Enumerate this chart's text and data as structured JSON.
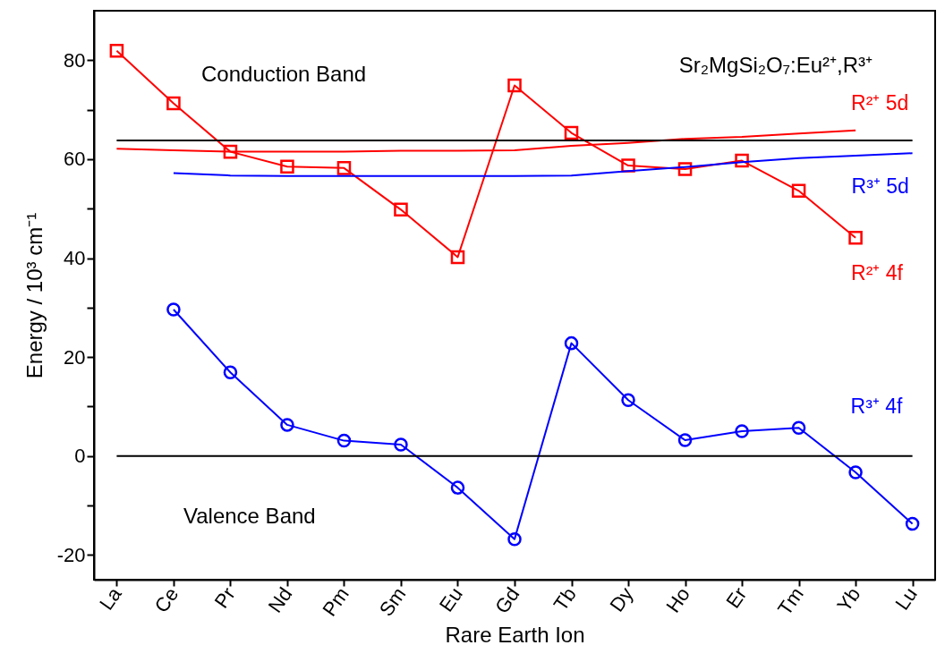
{
  "chart_data": {
    "type": "line",
    "xlabel": "Rare Earth Ion",
    "ylabel": "Energy / 10³ cm⁻¹",
    "categories": [
      "La",
      "Ce",
      "Pr",
      "Nd",
      "Pm",
      "Sm",
      "Eu",
      "Gd",
      "Tb",
      "Dy",
      "Ho",
      "Er",
      "Tm",
      "Yb",
      "Lu"
    ],
    "series": [
      {
        "name": "R²⁺ 4f",
        "color": "#ff0000",
        "marker": "square",
        "values": [
          81.9,
          71.3,
          61.5,
          58.5,
          58.2,
          49.8,
          40.2,
          74.9,
          65.3,
          58.7,
          58.0,
          59.7,
          53.6,
          44.1,
          null
        ]
      },
      {
        "name": "R²⁺ 5d",
        "color": "#ff0000",
        "marker": "none",
        "values": [
          62.1,
          61.8,
          61.5,
          61.5,
          61.5,
          61.7,
          61.7,
          61.8,
          62.7,
          63.3,
          64.1,
          64.5,
          65.2,
          65.8,
          null
        ]
      },
      {
        "name": "R³⁺ 5d",
        "color": "#0000ff",
        "marker": "none",
        "values": [
          null,
          57.2,
          56.7,
          56.6,
          56.6,
          56.6,
          56.6,
          56.6,
          56.7,
          57.6,
          58.4,
          59.4,
          60.2,
          60.7,
          61.2
        ]
      },
      {
        "name": "R³⁺ 4f",
        "color": "#0000ff",
        "marker": "circle",
        "values": [
          null,
          29.6,
          16.9,
          6.3,
          3.1,
          2.3,
          -6.4,
          -16.8,
          22.8,
          11.3,
          3.2,
          5.0,
          5.7,
          -3.3,
          -13.7
        ]
      },
      {
        "color": "#000000",
        "marker": "none",
        "values": [
          63.8,
          63.8,
          63.8,
          63.8,
          63.8,
          63.8,
          63.8,
          63.8,
          63.8,
          63.8,
          63.8,
          63.8,
          63.8,
          63.8,
          63.8
        ]
      },
      {
        "color": "#000000",
        "marker": "none",
        "values": [
          0,
          0,
          0,
          0,
          0,
          0,
          0,
          0,
          0,
          0,
          0,
          0,
          0,
          0,
          0
        ]
      }
    ],
    "ylim": [
      -25,
      90
    ],
    "yticks": [
      -20,
      {
        "value": -10,
        "label": null
      },
      0,
      {
        "value": 10,
        "label": null
      },
      20,
      {
        "value": 30,
        "label": null
      },
      40,
      {
        "value": 50,
        "label": null
      },
      60,
      {
        "value": 70,
        "label": null
      },
      80
    ],
    "annotations": [
      "Conduction Band",
      "Valence Band",
      "Sr₂MgSi₂O₇:Eu²⁺,R³⁺"
    ],
    "grid": false
  }
}
